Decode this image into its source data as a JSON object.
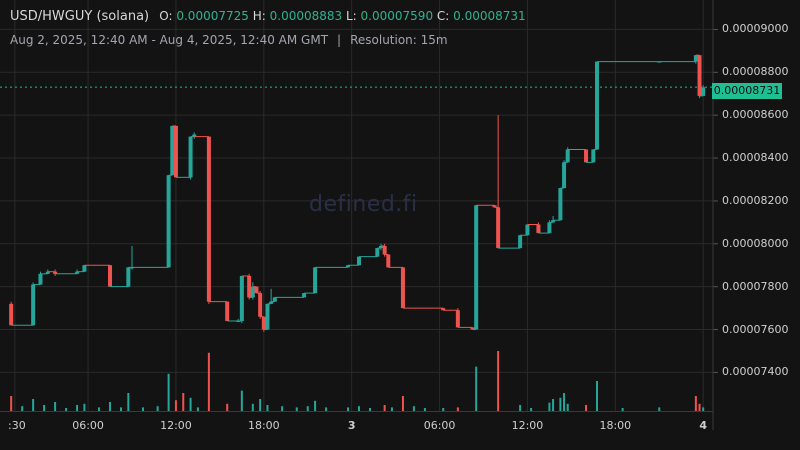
{
  "header": {
    "pair": "USD/HWGUY (solana)",
    "ohlc": {
      "o_label": "O:",
      "o": "0.00007725",
      "h_label": "H:",
      "h": "0.00008883",
      "l_label": "L:",
      "l": "0.00007590",
      "c_label": "C:",
      "c": "0.00008731"
    },
    "range": "Aug 2, 2025, 12:40 AM - Aug 4, 2025, 12:40 AM GMT",
    "separator": "|",
    "resolution": "Resolution: 15m"
  },
  "watermark": "defined.fi",
  "colors": {
    "up": "#26a69a",
    "down": "#ef5350",
    "grid": "#2a2a2a",
    "background": "#131313",
    "last_price": "#1fbf94"
  },
  "chart_data": {
    "type": "candlestick",
    "title": "USD/HWGUY (solana)",
    "y_ticks": [
      "0.00007400",
      "0.00007600",
      "0.00007800",
      "0.00008000",
      "0.00008200",
      "0.00008400",
      "0.00008600",
      "0.00008800",
      "0.00009000"
    ],
    "ylim": [
      7.22e-05,
      9.1e-05
    ],
    "last_price": "0.00008731",
    "x_ticks": [
      {
        "label": ":30",
        "t": 1.0,
        "bold": false
      },
      {
        "label": "06:00",
        "t": 6.0,
        "bold": false
      },
      {
        "label": "12:00",
        "t": 12.0,
        "bold": false
      },
      {
        "label": "18:00",
        "t": 18.0,
        "bold": false
      },
      {
        "label": "3",
        "t": 24.0,
        "bold": true
      },
      {
        "label": "06:00",
        "t": 30.0,
        "bold": false
      },
      {
        "label": "12:00",
        "t": 36.0,
        "bold": false
      },
      {
        "label": "18:00",
        "t": 42.0,
        "bold": false
      },
      {
        "label": "4",
        "t": 48.0,
        "bold": true
      }
    ],
    "xlim": [
      0.67,
      48.67
    ],
    "candles": [
      {
        "t": 0.75,
        "o": 7.72,
        "h": 7.73,
        "l": 7.62,
        "c": 7.62
      },
      {
        "t": 2.25,
        "o": 7.62,
        "h": 7.82,
        "l": 7.62,
        "c": 7.81
      },
      {
        "t": 2.75,
        "o": 7.81,
        "h": 7.87,
        "l": 7.81,
        "c": 7.86
      },
      {
        "t": 3.25,
        "o": 7.86,
        "h": 7.88,
        "l": 7.86,
        "c": 7.87
      },
      {
        "t": 3.75,
        "o": 7.87,
        "h": 7.88,
        "l": 7.85,
        "c": 7.86
      },
      {
        "t": 5.25,
        "o": 7.86,
        "h": 7.88,
        "l": 7.86,
        "c": 7.87
      },
      {
        "t": 5.75,
        "o": 7.87,
        "h": 7.9,
        "l": 7.87,
        "c": 7.9
      },
      {
        "t": 7.5,
        "o": 7.9,
        "h": 7.9,
        "l": 7.8,
        "c": 7.8
      },
      {
        "t": 8.75,
        "o": 7.8,
        "h": 7.89,
        "l": 7.8,
        "c": 7.89
      },
      {
        "t": 9.0,
        "o": 7.89,
        "h": 7.99,
        "l": 7.88,
        "c": 7.89
      },
      {
        "t": 11.5,
        "o": 7.89,
        "h": 8.32,
        "l": 7.89,
        "c": 8.32
      },
      {
        "t": 11.75,
        "o": 8.32,
        "h": 8.55,
        "l": 8.32,
        "c": 8.55
      },
      {
        "t": 12.0,
        "o": 8.55,
        "h": 8.55,
        "l": 8.31,
        "c": 8.31
      },
      {
        "t": 13.0,
        "o": 8.31,
        "h": 8.5,
        "l": 8.3,
        "c": 8.5
      },
      {
        "t": 13.25,
        "o": 8.5,
        "h": 8.52,
        "l": 8.49,
        "c": 8.51
      },
      {
        "t": 14.25,
        "o": 8.5,
        "h": 8.5,
        "l": 7.72,
        "c": 7.73
      },
      {
        "t": 15.5,
        "o": 7.73,
        "h": 7.73,
        "l": 7.64,
        "c": 7.64
      },
      {
        "t": 16.25,
        "o": 7.64,
        "h": 7.65,
        "l": 7.64,
        "c": 7.64
      },
      {
        "t": 16.5,
        "o": 7.64,
        "h": 7.85,
        "l": 7.63,
        "c": 7.85
      },
      {
        "t": 17.0,
        "o": 7.85,
        "h": 7.86,
        "l": 7.74,
        "c": 7.75
      },
      {
        "t": 17.25,
        "o": 7.75,
        "h": 7.82,
        "l": 7.74,
        "c": 7.8
      },
      {
        "t": 17.5,
        "o": 7.8,
        "h": 7.8,
        "l": 7.77,
        "c": 7.77
      },
      {
        "t": 17.75,
        "o": 7.77,
        "h": 7.78,
        "l": 7.65,
        "c": 7.66
      },
      {
        "t": 18.0,
        "o": 7.66,
        "h": 7.66,
        "l": 7.59,
        "c": 7.6
      },
      {
        "t": 18.25,
        "o": 7.6,
        "h": 7.72,
        "l": 7.6,
        "c": 7.72
      },
      {
        "t": 18.5,
        "o": 7.72,
        "h": 7.79,
        "l": 7.72,
        "c": 7.73
      },
      {
        "t": 18.75,
        "o": 7.73,
        "h": 7.75,
        "l": 7.73,
        "c": 7.75
      },
      {
        "t": 20.75,
        "o": 7.75,
        "h": 7.77,
        "l": 7.75,
        "c": 7.77
      },
      {
        "t": 21.5,
        "o": 7.77,
        "h": 7.89,
        "l": 7.77,
        "c": 7.89
      },
      {
        "t": 23.75,
        "o": 7.89,
        "h": 7.9,
        "l": 7.89,
        "c": 7.9
      },
      {
        "t": 24.5,
        "o": 7.9,
        "h": 7.94,
        "l": 7.9,
        "c": 7.94
      },
      {
        "t": 25.75,
        "o": 7.94,
        "h": 7.98,
        "l": 7.94,
        "c": 7.98
      },
      {
        "t": 26.0,
        "o": 7.98,
        "h": 8.0,
        "l": 7.97,
        "c": 7.99
      },
      {
        "t": 26.25,
        "o": 7.99,
        "h": 8.0,
        "l": 7.94,
        "c": 7.95
      },
      {
        "t": 26.5,
        "o": 7.95,
        "h": 7.95,
        "l": 7.89,
        "c": 7.89
      },
      {
        "t": 27.5,
        "o": 7.89,
        "h": 7.89,
        "l": 7.7,
        "c": 7.7
      },
      {
        "t": 30.25,
        "o": 7.7,
        "h": 7.7,
        "l": 7.69,
        "c": 7.69
      },
      {
        "t": 31.25,
        "o": 7.69,
        "h": 7.7,
        "l": 7.61,
        "c": 7.61
      },
      {
        "t": 32.25,
        "o": 7.61,
        "h": 7.61,
        "l": 7.6,
        "c": 7.6
      },
      {
        "t": 32.5,
        "o": 7.6,
        "h": 8.18,
        "l": 7.6,
        "c": 8.18
      },
      {
        "t": 33.75,
        "o": 8.18,
        "h": 8.18,
        "l": 8.17,
        "c": 8.17
      },
      {
        "t": 34.0,
        "o": 8.17,
        "h": 8.6,
        "l": 7.98,
        "c": 7.98
      },
      {
        "t": 35.5,
        "o": 7.98,
        "h": 8.04,
        "l": 7.98,
        "c": 8.04
      },
      {
        "t": 36.0,
        "o": 8.04,
        "h": 8.09,
        "l": 8.04,
        "c": 8.09
      },
      {
        "t": 36.75,
        "o": 8.09,
        "h": 8.1,
        "l": 8.05,
        "c": 8.05
      },
      {
        "t": 37.5,
        "o": 8.05,
        "h": 8.11,
        "l": 8.05,
        "c": 8.1
      },
      {
        "t": 37.75,
        "o": 8.1,
        "h": 8.13,
        "l": 8.1,
        "c": 8.11
      },
      {
        "t": 38.25,
        "o": 8.11,
        "h": 8.26,
        "l": 8.11,
        "c": 8.26
      },
      {
        "t": 38.5,
        "o": 8.26,
        "h": 8.39,
        "l": 8.26,
        "c": 8.38
      },
      {
        "t": 38.75,
        "o": 8.38,
        "h": 8.45,
        "l": 8.38,
        "c": 8.44
      },
      {
        "t": 40.0,
        "o": 8.44,
        "h": 8.44,
        "l": 8.38,
        "c": 8.38
      },
      {
        "t": 40.5,
        "o": 8.38,
        "h": 8.44,
        "l": 8.38,
        "c": 8.44
      },
      {
        "t": 40.75,
        "o": 8.44,
        "h": 8.85,
        "l": 8.44,
        "c": 8.85
      },
      {
        "t": 45.0,
        "o": 8.85,
        "h": 8.85,
        "l": 8.85,
        "c": 8.85
      },
      {
        "t": 47.5,
        "o": 8.85,
        "h": 8.88,
        "l": 8.84,
        "c": 8.88
      },
      {
        "t": 47.75,
        "o": 8.88,
        "h": 8.88,
        "l": 8.68,
        "c": 8.69
      },
      {
        "t": 48.0,
        "o": 8.69,
        "h": 8.74,
        "l": 8.69,
        "c": 8.73
      }
    ],
    "volumes": [
      {
        "t": 0.75,
        "v": 0.25,
        "up": false
      },
      {
        "t": 1.5,
        "v": 0.08,
        "up": true
      },
      {
        "t": 2.25,
        "v": 0.2,
        "up": true
      },
      {
        "t": 3.0,
        "v": 0.1,
        "up": true
      },
      {
        "t": 3.75,
        "v": 0.15,
        "up": true
      },
      {
        "t": 4.5,
        "v": 0.05,
        "up": true
      },
      {
        "t": 5.25,
        "v": 0.1,
        "up": true
      },
      {
        "t": 5.75,
        "v": 0.12,
        "up": true
      },
      {
        "t": 6.75,
        "v": 0.06,
        "up": true
      },
      {
        "t": 7.5,
        "v": 0.15,
        "up": true
      },
      {
        "t": 8.25,
        "v": 0.06,
        "up": true
      },
      {
        "t": 8.75,
        "v": 0.3,
        "up": true
      },
      {
        "t": 9.75,
        "v": 0.06,
        "up": true
      },
      {
        "t": 10.75,
        "v": 0.08,
        "up": true
      },
      {
        "t": 11.5,
        "v": 0.62,
        "up": true
      },
      {
        "t": 12.0,
        "v": 0.18,
        "up": false
      },
      {
        "t": 12.5,
        "v": 0.3,
        "up": false
      },
      {
        "t": 13.0,
        "v": 0.22,
        "up": true
      },
      {
        "t": 13.5,
        "v": 0.06,
        "up": true
      },
      {
        "t": 14.25,
        "v": 0.97,
        "up": false
      },
      {
        "t": 15.5,
        "v": 0.12,
        "up": false
      },
      {
        "t": 16.5,
        "v": 0.34,
        "up": true
      },
      {
        "t": 17.25,
        "v": 0.12,
        "up": true
      },
      {
        "t": 17.75,
        "v": 0.2,
        "up": true
      },
      {
        "t": 18.25,
        "v": 0.1,
        "up": true
      },
      {
        "t": 19.25,
        "v": 0.08,
        "up": true
      },
      {
        "t": 20.25,
        "v": 0.06,
        "up": true
      },
      {
        "t": 21.0,
        "v": 0.08,
        "up": true
      },
      {
        "t": 21.5,
        "v": 0.17,
        "up": true
      },
      {
        "t": 22.25,
        "v": 0.06,
        "up": true
      },
      {
        "t": 23.75,
        "v": 0.06,
        "up": true
      },
      {
        "t": 24.5,
        "v": 0.08,
        "up": true
      },
      {
        "t": 25.25,
        "v": 0.05,
        "up": true
      },
      {
        "t": 26.25,
        "v": 0.1,
        "up": false
      },
      {
        "t": 26.75,
        "v": 0.06,
        "up": true
      },
      {
        "t": 27.5,
        "v": 0.25,
        "up": false
      },
      {
        "t": 28.25,
        "v": 0.08,
        "up": true
      },
      {
        "t": 29.0,
        "v": 0.05,
        "up": true
      },
      {
        "t": 30.25,
        "v": 0.05,
        "up": true
      },
      {
        "t": 31.25,
        "v": 0.06,
        "up": false
      },
      {
        "t": 32.5,
        "v": 0.74,
        "up": true
      },
      {
        "t": 34.0,
        "v": 1.0,
        "up": false
      },
      {
        "t": 35.5,
        "v": 0.1,
        "up": true
      },
      {
        "t": 36.25,
        "v": 0.05,
        "up": true
      },
      {
        "t": 37.5,
        "v": 0.14,
        "up": true
      },
      {
        "t": 37.75,
        "v": 0.2,
        "up": true
      },
      {
        "t": 38.25,
        "v": 0.22,
        "up": true
      },
      {
        "t": 38.5,
        "v": 0.3,
        "up": true
      },
      {
        "t": 38.75,
        "v": 0.12,
        "up": true
      },
      {
        "t": 40.0,
        "v": 0.1,
        "up": false
      },
      {
        "t": 40.75,
        "v": 0.5,
        "up": true
      },
      {
        "t": 42.5,
        "v": 0.05,
        "up": true
      },
      {
        "t": 45.0,
        "v": 0.06,
        "up": true
      },
      {
        "t": 47.5,
        "v": 0.25,
        "up": false
      },
      {
        "t": 47.75,
        "v": 0.12,
        "up": false
      },
      {
        "t": 48.0,
        "v": 0.06,
        "up": true
      }
    ]
  }
}
